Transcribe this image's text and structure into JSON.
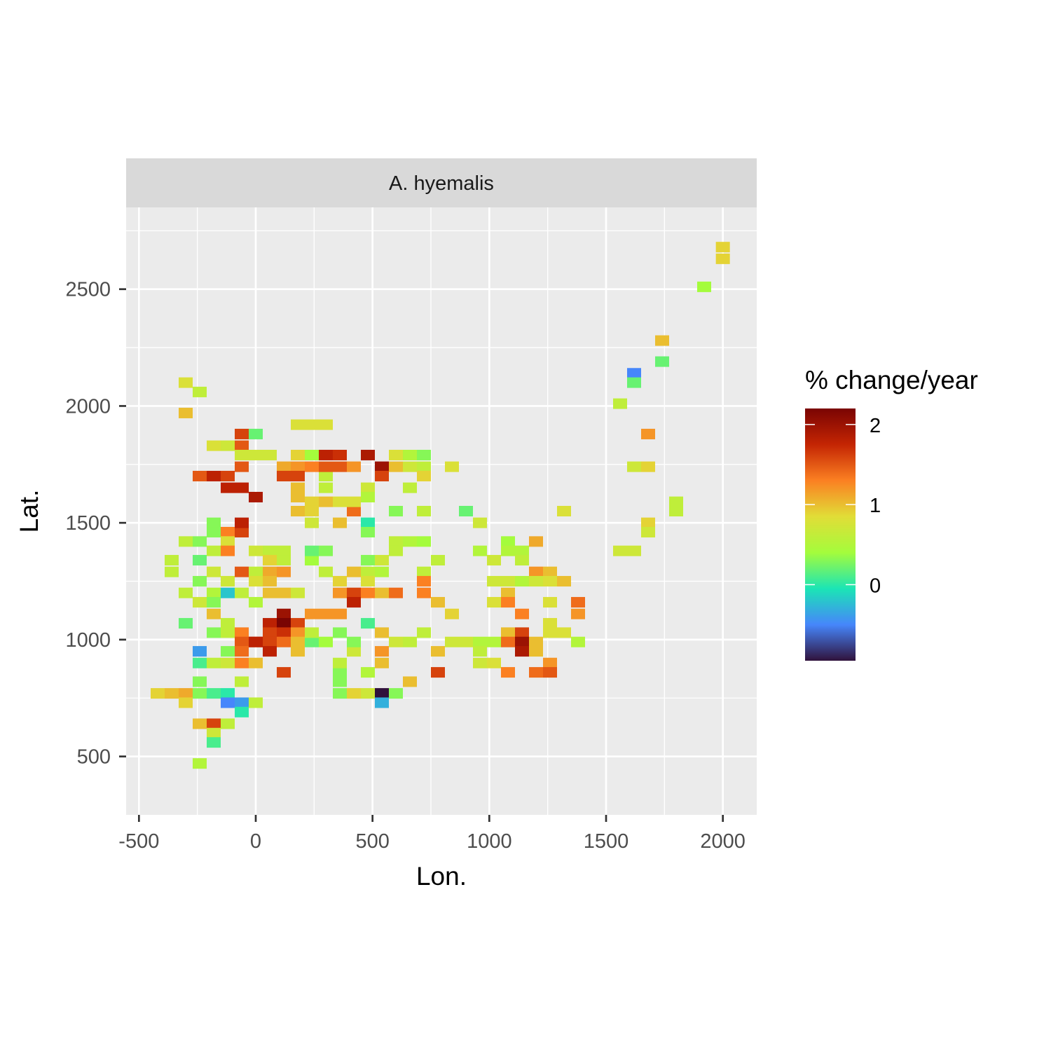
{
  "chart_data": {
    "type": "heatmap",
    "facet_label": "A. hyemalis",
    "xlabel": "Lon.",
    "ylabel": "Lat.",
    "xlim": [
      -555,
      2145
    ],
    "ylim": [
      250,
      2850
    ],
    "x_ticks": [
      -500,
      0,
      500,
      1000,
      1500,
      2000
    ],
    "x_tick_labels": [
      "-500",
      "0",
      "500",
      "1000",
      "1500",
      "2000"
    ],
    "y_ticks": [
      500,
      1000,
      1500,
      2000,
      2500
    ],
    "y_tick_labels": [
      "500",
      "1000",
      "1500",
      "2000",
      "2500"
    ],
    "grid": true,
    "cell_width": 60,
    "cell_height": 45,
    "legend": {
      "title": "% change/year",
      "position": "right",
      "min": -0.95,
      "max": 2.2,
      "ticks": [
        0,
        1,
        2
      ],
      "tick_labels": [
        "0",
        "1",
        "2"
      ],
      "palette": [
        "#30123b",
        "#4686fb",
        "#1be5b5",
        "#a4fc3c",
        "#e1dd37",
        "#fb8022",
        "#c42503",
        "#7a0403"
      ]
    },
    "points": [
      [
        2000,
        2680,
        0.9
      ],
      [
        2000,
        2630,
        0.9
      ],
      [
        1920,
        2510,
        0.4
      ],
      [
        1740,
        2280,
        1.0
      ],
      [
        1740,
        2190,
        0.2
      ],
      [
        1620,
        2140,
        -0.5
      ],
      [
        1620,
        2100,
        0.2
      ],
      [
        1560,
        2010,
        0.6
      ],
      [
        1680,
        1880,
        1.2
      ],
      [
        1620,
        1740,
        0.7
      ],
      [
        1680,
        1740,
        0.9
      ],
      [
        1800,
        1590,
        0.6
      ],
      [
        1800,
        1550,
        0.6
      ],
      [
        1680,
        1500,
        0.9
      ],
      [
        1680,
        1460,
        0.7
      ],
      [
        1560,
        1380,
        0.7
      ],
      [
        1620,
        1380,
        0.7
      ],
      [
        1320,
        1550,
        0.8
      ],
      [
        1200,
        1420,
        1.1
      ],
      [
        1140,
        1380,
        0.5
      ],
      [
        1080,
        1420,
        0.4
      ],
      [
        1080,
        1380,
        0.5
      ],
      [
        1140,
        1340,
        0.6
      ],
      [
        1020,
        1340,
        0.7
      ],
      [
        960,
        1380,
        0.5
      ],
      [
        1260,
        1290,
        1.0
      ],
      [
        1200,
        1290,
        1.2
      ],
      [
        1320,
        1250,
        1.0
      ],
      [
        1260,
        1250,
        0.8
      ],
      [
        1200,
        1250,
        0.7
      ],
      [
        1140,
        1250,
        0.5
      ],
      [
        1080,
        1250,
        0.7
      ],
      [
        1020,
        1250,
        0.7
      ],
      [
        1080,
        1200,
        1.0
      ],
      [
        1020,
        1160,
        0.8
      ],
      [
        1080,
        1160,
        1.3
      ],
      [
        1260,
        1160,
        0.8
      ],
      [
        1380,
        1160,
        1.4
      ],
      [
        1140,
        1110,
        1.3
      ],
      [
        1380,
        1110,
        1.2
      ],
      [
        1260,
        1070,
        0.8
      ],
      [
        1260,
        1030,
        0.8
      ],
      [
        1320,
        1030,
        0.8
      ],
      [
        1080,
        1030,
        1.0
      ],
      [
        1140,
        1030,
        1.6
      ],
      [
        1020,
        990,
        0.5
      ],
      [
        1080,
        990,
        1.4
      ],
      [
        1140,
        990,
        2.0
      ],
      [
        1200,
        990,
        1.0
      ],
      [
        1140,
        950,
        1.9
      ],
      [
        1200,
        950,
        1.0
      ],
      [
        1380,
        990,
        0.5
      ],
      [
        960,
        990,
        0.5
      ],
      [
        960,
        950,
        0.6
      ],
      [
        900,
        990,
        0.7
      ],
      [
        960,
        900,
        0.7
      ],
      [
        1020,
        900,
        0.8
      ],
      [
        1260,
        900,
        1.2
      ],
      [
        1080,
        860,
        1.3
      ],
      [
        1200,
        860,
        1.4
      ],
      [
        1260,
        860,
        1.5
      ],
      [
        900,
        1550,
        0.2
      ],
      [
        960,
        1500,
        0.7
      ],
      [
        840,
        1740,
        0.8
      ],
      [
        720,
        1790,
        0.3
      ],
      [
        660,
        1790,
        0.5
      ],
      [
        600,
        1790,
        0.8
      ],
      [
        660,
        1740,
        0.7
      ],
      [
        720,
        1740,
        0.6
      ],
      [
        720,
        1700,
        0.9
      ],
      [
        540,
        1740,
        2.0
      ],
      [
        600,
        1740,
        1.0
      ],
      [
        540,
        1700,
        1.6
      ],
      [
        660,
        1650,
        0.6
      ],
      [
        480,
        1790,
        1.9
      ],
      [
        420,
        1740,
        1.2
      ],
      [
        480,
        1650,
        0.7
      ],
      [
        480,
        1610,
        0.5
      ],
      [
        600,
        1550,
        0.3
      ],
      [
        720,
        1550,
        0.6
      ],
      [
        480,
        1500,
        0.0
      ],
      [
        480,
        1460,
        0.3
      ],
      [
        600,
        1420,
        0.6
      ],
      [
        660,
        1420,
        0.5
      ],
      [
        720,
        1420,
        0.4
      ],
      [
        600,
        1380,
        0.6
      ],
      [
        540,
        1340,
        0.7
      ],
      [
        480,
        1340,
        0.3
      ],
      [
        480,
        1290,
        0.6
      ],
      [
        540,
        1290,
        0.5
      ],
      [
        720,
        1290,
        0.6
      ],
      [
        780,
        1340,
        0.6
      ],
      [
        720,
        1250,
        1.3
      ],
      [
        720,
        1200,
        1.3
      ],
      [
        600,
        1200,
        1.4
      ],
      [
        540,
        1200,
        1.0
      ],
      [
        480,
        1200,
        1.3
      ],
      [
        480,
        1250,
        0.8
      ],
      [
        420,
        1200,
        1.6
      ],
      [
        360,
        1200,
        1.2
      ],
      [
        420,
        1160,
        1.8
      ],
      [
        780,
        1160,
        1.0
      ],
      [
        840,
        1110,
        0.9
      ],
      [
        480,
        1070,
        0.1
      ],
      [
        540,
        1030,
        1.0
      ],
      [
        720,
        1030,
        0.6
      ],
      [
        660,
        990,
        0.6
      ],
      [
        600,
        990,
        0.7
      ],
      [
        840,
        990,
        0.7
      ],
      [
        780,
        950,
        1.0
      ],
      [
        540,
        950,
        1.2
      ],
      [
        540,
        900,
        1.0
      ],
      [
        480,
        860,
        0.5
      ],
      [
        780,
        860,
        1.6
      ],
      [
        660,
        820,
        1.0
      ],
      [
        600,
        770,
        0.3
      ],
      [
        540,
        770,
        -0.95
      ],
      [
        540,
        730,
        -0.3
      ],
      [
        480,
        770,
        0.7
      ],
      [
        420,
        770,
        0.9
      ],
      [
        360,
        770,
        0.3
      ],
      [
        360,
        820,
        0.3
      ],
      [
        360,
        860,
        0.3
      ],
      [
        360,
        900,
        0.6
      ],
      [
        420,
        950,
        0.7
      ],
      [
        420,
        990,
        0.3
      ],
      [
        360,
        1030,
        0.3
      ],
      [
        360,
        1110,
        1.2
      ],
      [
        300,
        1110,
        1.2
      ],
      [
        420,
        1290,
        1.0
      ],
      [
        360,
        1250,
        0.9
      ],
      [
        300,
        1380,
        0.3
      ],
      [
        240,
        1340,
        0.4
      ],
      [
        300,
        1290,
        0.6
      ],
      [
        360,
        1500,
        1.0
      ],
      [
        420,
        1550,
        1.4
      ],
      [
        420,
        1590,
        0.8
      ],
      [
        360,
        1590,
        0.8
      ],
      [
        300,
        1590,
        1.0
      ],
      [
        240,
        1590,
        0.9
      ],
      [
        240,
        1550,
        0.9
      ],
      [
        240,
        1500,
        0.7
      ],
      [
        300,
        1650,
        0.6
      ],
      [
        300,
        1700,
        0.6
      ],
      [
        240,
        1740,
        1.3
      ],
      [
        300,
        1740,
        1.5
      ],
      [
        360,
        1740,
        1.5
      ],
      [
        300,
        1790,
        1.8
      ],
      [
        360,
        1790,
        1.7
      ],
      [
        240,
        1790,
        0.4
      ],
      [
        180,
        1790,
        0.9
      ],
      [
        180,
        1740,
        1.2
      ],
      [
        120,
        1740,
        1.1
      ],
      [
        180,
        1700,
        1.6
      ],
      [
        120,
        1700,
        1.6
      ],
      [
        60,
        1790,
        0.7
      ],
      [
        0,
        1790,
        0.7
      ],
      [
        0,
        1880,
        0.2
      ],
      [
        180,
        1920,
        0.8
      ],
      [
        240,
        1920,
        0.8
      ],
      [
        300,
        1920,
        0.8
      ],
      [
        180,
        1650,
        1.0
      ],
      [
        180,
        1610,
        1.0
      ],
      [
        180,
        1550,
        1.0
      ],
      [
        120,
        1380,
        0.6
      ],
      [
        60,
        1380,
        0.6
      ],
      [
        0,
        1380,
        0.7
      ],
      [
        120,
        1340,
        0.6
      ],
      [
        60,
        1290,
        1.1
      ],
      [
        120,
        1290,
        1.2
      ],
      [
        0,
        1290,
        0.6
      ],
      [
        60,
        1250,
        1.0
      ],
      [
        60,
        1200,
        1.0
      ],
      [
        120,
        1200,
        1.0
      ],
      [
        180,
        1200,
        0.7
      ],
      [
        120,
        1110,
        2.0
      ],
      [
        120,
        1070,
        2.2
      ],
      [
        180,
        1070,
        1.6
      ],
      [
        60,
        1070,
        1.8
      ],
      [
        120,
        1030,
        1.7
      ],
      [
        60,
        1030,
        1.6
      ],
      [
        180,
        1030,
        1.2
      ],
      [
        0,
        990,
        1.6
      ],
      [
        60,
        990,
        1.6
      ],
      [
        120,
        990,
        1.4
      ],
      [
        180,
        990,
        1.0
      ],
      [
        240,
        990,
        0.2
      ],
      [
        60,
        950,
        1.8
      ],
      [
        180,
        950,
        1.0
      ],
      [
        0,
        900,
        1.0
      ],
      [
        120,
        860,
        1.6
      ],
      [
        0,
        730,
        0.6
      ],
      [
        240,
        1380,
        0.2
      ],
      [
        240,
        1110,
        1.2
      ],
      [
        300,
        990,
        0.4
      ],
      [
        240,
        1030,
        0.6
      ],
      [
        -60,
        1880,
        1.6
      ],
      [
        -120,
        1830,
        0.7
      ],
      [
        -60,
        1830,
        1.5
      ],
      [
        -180,
        1830,
        0.8
      ],
      [
        -60,
        1790,
        0.7
      ],
      [
        -60,
        1740,
        1.5
      ],
      [
        -240,
        1700,
        1.5
      ],
      [
        -180,
        1700,
        1.8
      ],
      [
        -120,
        1700,
        1.6
      ],
      [
        -120,
        1650,
        1.8
      ],
      [
        -60,
        1650,
        1.8
      ],
      [
        0,
        1610,
        1.9
      ],
      [
        -180,
        1500,
        0.3
      ],
      [
        -180,
        1460,
        0.3
      ],
      [
        -120,
        1460,
        1.3
      ],
      [
        -60,
        1460,
        1.6
      ],
      [
        -60,
        1500,
        1.8
      ],
      [
        -300,
        1420,
        0.6
      ],
      [
        -240,
        1420,
        0.3
      ],
      [
        -120,
        1420,
        0.8
      ],
      [
        -180,
        1380,
        0.6
      ],
      [
        -120,
        1380,
        1.3
      ],
      [
        -360,
        1340,
        0.6
      ],
      [
        -240,
        1340,
        0.2
      ],
      [
        -360,
        1290,
        0.6
      ],
      [
        -180,
        1290,
        0.7
      ],
      [
        -60,
        1290,
        1.5
      ],
      [
        -240,
        1250,
        0.3
      ],
      [
        -120,
        1250,
        0.7
      ],
      [
        -300,
        1200,
        0.6
      ],
      [
        -180,
        1200,
        0.5
      ],
      [
        -120,
        1200,
        -0.2
      ],
      [
        -60,
        1200,
        0.6
      ],
      [
        -240,
        1160,
        0.7
      ],
      [
        -180,
        1160,
        0.3
      ],
      [
        -180,
        1110,
        1.0
      ],
      [
        -300,
        1070,
        0.2
      ],
      [
        -120,
        1070,
        0.6
      ],
      [
        -180,
        1030,
        0.3
      ],
      [
        -120,
        1030,
        0.6
      ],
      [
        -60,
        1030,
        1.3
      ],
      [
        -60,
        990,
        1.5
      ],
      [
        0,
        990,
        1.8
      ],
      [
        -240,
        950,
        -0.4
      ],
      [
        -120,
        950,
        0.3
      ],
      [
        -60,
        950,
        1.4
      ],
      [
        -240,
        900,
        0.1
      ],
      [
        -180,
        900,
        0.6
      ],
      [
        -120,
        900,
        0.7
      ],
      [
        -60,
        900,
        1.3
      ],
      [
        -240,
        820,
        0.3
      ],
      [
        -60,
        820,
        0.6
      ],
      [
        -240,
        770,
        0.3
      ],
      [
        -420,
        770,
        0.9
      ],
      [
        -360,
        770,
        1.0
      ],
      [
        -300,
        770,
        1.1
      ],
      [
        -180,
        770,
        0.1
      ],
      [
        -120,
        770,
        0.0
      ],
      [
        -300,
        730,
        0.9
      ],
      [
        -120,
        730,
        -0.5
      ],
      [
        -60,
        730,
        -0.4
      ],
      [
        -60,
        690,
        0.0
      ],
      [
        -240,
        640,
        1.0
      ],
      [
        -180,
        640,
        1.6
      ],
      [
        -120,
        640,
        0.6
      ],
      [
        -180,
        600,
        0.7
      ],
      [
        -180,
        560,
        0.1
      ],
      [
        -240,
        470,
        0.5
      ],
      [
        -300,
        2100,
        0.8
      ],
      [
        -240,
        2060,
        0.6
      ],
      [
        -300,
        1970,
        1.0
      ],
      [
        60,
        1340,
        0.9
      ],
      [
        0,
        1250,
        0.8
      ],
      [
        0,
        1160,
        0.5
      ]
    ]
  }
}
